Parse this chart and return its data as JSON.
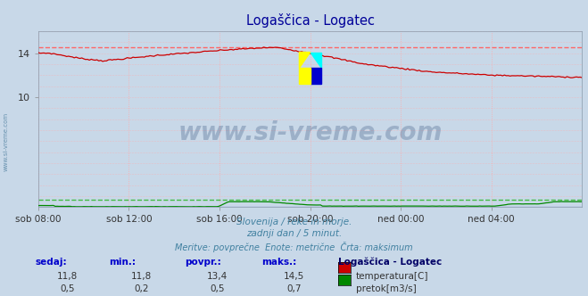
{
  "title": "Logaščica - Logatec",
  "title_color": "#000099",
  "bg_color": "#c8d8e8",
  "plot_bg_color": "#c8d8e8",
  "grid_color": "#ffaaaa",
  "watermark_text": "www.si-vreme.com",
  "watermark_color": "#1a3a6a",
  "xlabel_ticks": [
    "sob 08:00",
    "sob 12:00",
    "sob 16:00",
    "sob 20:00",
    "ned 00:00",
    "ned 04:00"
  ],
  "tick_positions": [
    0.0,
    0.1667,
    0.3333,
    0.5,
    0.6667,
    0.8333
  ],
  "subtitle_lines": [
    "Slovenija / reke in morje.",
    "zadnji dan / 5 minut.",
    "Meritve: povprečne  Enote: metrične  Črta: maksimum"
  ],
  "subtitle_color": "#4080a0",
  "temp_color": "#cc0000",
  "flow_color": "#008800",
  "height_color": "#0000bb",
  "temp_max_color": "#ff6666",
  "flow_max_color": "#44bb44",
  "ylim": [
    0,
    16
  ],
  "ytick_vals": [
    10,
    14
  ],
  "temp_max": 14.5,
  "flow_max": 0.7,
  "legend_station": "Logaščica - Logatec",
  "legend_temp_label": "temperatura[C]",
  "legend_flow_label": "pretok[m3/s]",
  "stats_headers": [
    "sedaj:",
    "min.:",
    "povpr.:",
    "maks.:"
  ],
  "temp_vals": [
    "11,8",
    "11,8",
    "13,4",
    "14,5"
  ],
  "flow_vals": [
    "0,5",
    "0,2",
    "0,5",
    "0,7"
  ]
}
